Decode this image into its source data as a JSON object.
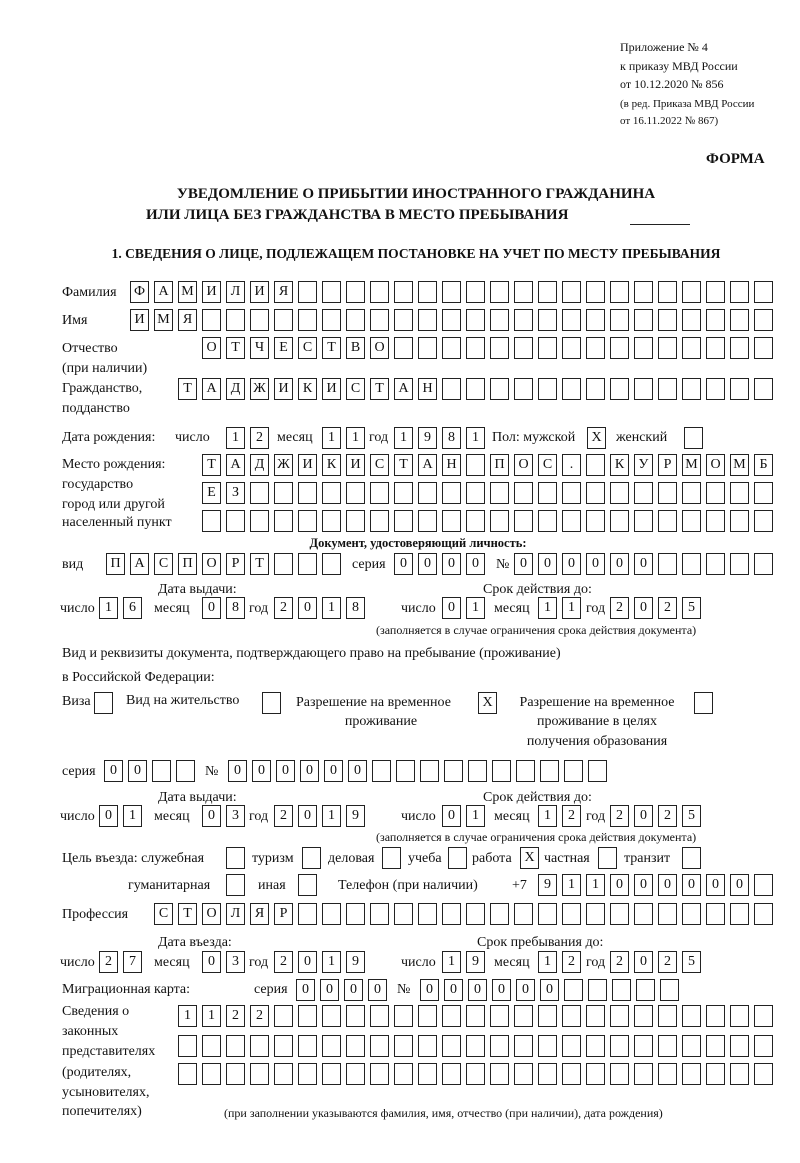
{
  "header": {
    "appendix": "Приложение № 4",
    "order": "к приказу МВД России",
    "order_date": "от 10.12.2020 № 856",
    "edition": "(в ред. Приказа МВД России",
    "edition_date": "от 16.11.2022 № 867)",
    "form_label": "ФОРМА",
    "title_line1": "УВЕДОМЛЕНИЕ О ПРИБЫТИИ ИНОСТРАННОГО ГРАЖДАНИНА",
    "title_line2": "ИЛИ ЛИЦА БЕЗ ГРАЖДАНСТВА В МЕСТО ПРЕБЫВАНИЯ",
    "section1": "1. СВЕДЕНИЯ О ЛИЦЕ, ПОДЛЕЖАЩЕМ ПОСТАНОВКЕ НА УЧЕТ ПО МЕСТУ ПРЕБЫВАНИЯ"
  },
  "labels": {
    "surname": "Фамилия",
    "name": "Имя",
    "patronymic": "Отчество",
    "patronymic_note": "(при наличии)",
    "citizenship": "Гражданство,",
    "citizenship2": "подданство",
    "birth_date": "Дата рождения:",
    "day": "число",
    "month": "месяц",
    "year": "год",
    "sex": "Пол: мужской",
    "female": "женский",
    "birthplace1": "Место рождения:",
    "birthplace2": "государство",
    "birthplace3": "город или другой",
    "birthplace4": "населенный пункт",
    "id_doc": "Документ, удостоверяющий личность:",
    "kind": "вид",
    "series": "серия",
    "number": "№",
    "issue_date": "Дата выдачи:",
    "valid_until": "Срок действия до:",
    "validity_note": "(заполняется в случае ограничения срока действия документа)",
    "stay_doc1": "Вид и реквизиты документа, подтверждающего право на пребывание (проживание)",
    "stay_doc2": "в Российской Федерации:",
    "visa": "Виза",
    "residence": "Вид на жительство",
    "temp_permit1": "Разрешение на временное",
    "temp_permit2": "проживание",
    "edu_permit1": "Разрешение на временное",
    "edu_permit2": "проживание в целях",
    "edu_permit3": "получения образования",
    "purpose": "Цель въезда: служебная",
    "tourism": "туризм",
    "business": "деловая",
    "study": "учеба",
    "work": "работа",
    "private": "частная",
    "transit": "транзит",
    "humanitarian": "гуманитарная",
    "other": "иная",
    "phone": "Телефон (при наличии)",
    "phone_prefix": "+7",
    "profession": "Профессия",
    "entry_date": "Дата въезда:",
    "stay_until": "Срок пребывания до:",
    "migration_card": "Миграционная карта:",
    "guardians1": "Сведения о",
    "guardians2": "законных",
    "guardians3": "представителях",
    "guardians4": "(родителях,",
    "guardians5": "усыновителях,",
    "guardians6": "попечителях)",
    "guardians_note": "(при заполнении указываются фамилия, имя, отчество (при наличии), дата рождения)"
  },
  "person": {
    "surname": [
      "Ф",
      "А",
      "М",
      "И",
      "Л",
      "И",
      "Я"
    ],
    "name": [
      "И",
      "М",
      "Я"
    ],
    "patronymic": [
      "О",
      "Т",
      "Ч",
      "Е",
      "С",
      "Т",
      "В",
      "О"
    ],
    "citizenship": [
      "Т",
      "А",
      "Д",
      "Ж",
      "И",
      "К",
      "И",
      "С",
      "Т",
      "А",
      "Н"
    ],
    "birth_day": [
      "1",
      "2"
    ],
    "birth_month": [
      "1",
      "1"
    ],
    "birth_year": [
      "1",
      "9",
      "8",
      "1"
    ],
    "sex_male": [
      "X"
    ],
    "sex_female": [],
    "birthplace_line1": [
      "Т",
      "А",
      "Д",
      "Ж",
      "И",
      "К",
      "И",
      "С",
      "Т",
      "А",
      "Н",
      " ",
      "П",
      "О",
      "С",
      ".",
      " ",
      "К",
      "У",
      "Р",
      "М",
      "О",
      "М",
      "Б"
    ],
    "birthplace_line2": [
      "Е",
      "З"
    ],
    "birthplace_line3": [],
    "id_kind": [
      "П",
      "А",
      "С",
      "П",
      "О",
      "Р",
      "Т"
    ],
    "id_series": [
      "0",
      "0",
      "0",
      "0"
    ],
    "id_number": [
      "0",
      "0",
      "0",
      "0",
      "0",
      "0"
    ],
    "id_issue_day": [
      "1",
      "6"
    ],
    "id_issue_month": [
      "0",
      "8"
    ],
    "id_issue_year": [
      "2",
      "0",
      "1",
      "8"
    ],
    "id_valid_day": [
      "0",
      "1"
    ],
    "id_valid_month": [
      "1",
      "1"
    ],
    "id_valid_year": [
      "2",
      "0",
      "2",
      "5"
    ],
    "visa": [],
    "residence": [],
    "temp_permit": [
      "X"
    ],
    "edu_permit": [],
    "stay_series": [
      "0",
      "0"
    ],
    "stay_number": [
      "0",
      "0",
      "0",
      "0",
      "0",
      "0"
    ],
    "stay_issue_day": [
      "0",
      "1"
    ],
    "stay_issue_month": [
      "0",
      "3"
    ],
    "stay_issue_year": [
      "2",
      "0",
      "1",
      "9"
    ],
    "stay_valid_day": [
      "0",
      "1"
    ],
    "stay_valid_month": [
      "1",
      "2"
    ],
    "stay_valid_year": [
      "2",
      "0",
      "2",
      "5"
    ],
    "p_official": [],
    "p_tourism": [],
    "p_business": [],
    "p_study": [],
    "p_work": [
      "X"
    ],
    "p_private": [],
    "p_transit": [],
    "p_humanitarian": [],
    "p_other": [],
    "phone": [
      "9",
      "1",
      "1",
      "0",
      "0",
      "0",
      "0",
      "0",
      "0"
    ],
    "profession": [
      "С",
      "Т",
      "О",
      "Л",
      "Я",
      "Р"
    ],
    "entry_day": [
      "2",
      "7"
    ],
    "entry_month": [
      "0",
      "3"
    ],
    "entry_year": [
      "2",
      "0",
      "1",
      "9"
    ],
    "stay_day": [
      "1",
      "9"
    ],
    "stay_month": [
      "1",
      "2"
    ],
    "stay_year": [
      "2",
      "0",
      "2",
      "5"
    ],
    "mc_series": [
      "0",
      "0",
      "0",
      "0"
    ],
    "mc_number": [
      "0",
      "0",
      "0",
      "0",
      "0",
      "0"
    ],
    "guardians_line1": [
      "1",
      "1",
      "2",
      "2"
    ],
    "guardians_line2": [],
    "guardians_line3": []
  }
}
